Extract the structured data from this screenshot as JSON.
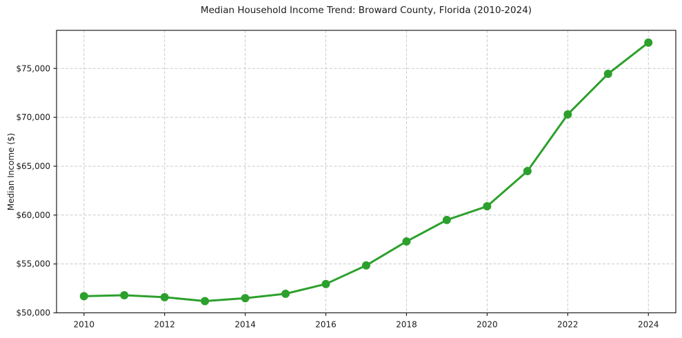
{
  "chart_data": {
    "type": "line",
    "title": "Median Household Income Trend: Broward County, Florida (2010-2024)",
    "xlabel": "",
    "ylabel": "Median Income ($)",
    "x": [
      2010,
      2011,
      2012,
      2013,
      2014,
      2015,
      2016,
      2017,
      2018,
      2019,
      2020,
      2021,
      2022,
      2023,
      2024
    ],
    "values": [
      51700,
      51800,
      51600,
      51200,
      51500,
      51950,
      52950,
      54850,
      57300,
      59500,
      60900,
      64500,
      70300,
      74450,
      77650
    ],
    "series_name": "Median Household Income",
    "x_ticks": [
      {
        "value": 2010,
        "label": "2010"
      },
      {
        "value": 2012,
        "label": "2012"
      },
      {
        "value": 2014,
        "label": "2014"
      },
      {
        "value": 2016,
        "label": "2016"
      },
      {
        "value": 2018,
        "label": "2018"
      },
      {
        "value": 2020,
        "label": "2020"
      },
      {
        "value": 2022,
        "label": "2022"
      },
      {
        "value": 2024,
        "label": "2024"
      }
    ],
    "y_ticks": [
      {
        "value": 50000,
        "label": "$50,000"
      },
      {
        "value": 55000,
        "label": "$55,000"
      },
      {
        "value": 60000,
        "label": "$60,000"
      },
      {
        "value": 65000,
        "label": "$65,000"
      },
      {
        "value": 70000,
        "label": "$70,000"
      },
      {
        "value": 75000,
        "label": "$75,000"
      }
    ],
    "xlim": [
      2009.32,
      2024.68
    ],
    "ylim": [
      50000,
      78900
    ],
    "grid": true,
    "grid_style": "dashed",
    "legend": false,
    "marker": "circle",
    "colors": {
      "line": "#2ca02c",
      "marker": "#2ca02c",
      "grid": "#c9c9c9",
      "spine": "#1f1f1f",
      "text": "#1a1a1a",
      "background": "#ffffff"
    }
  }
}
